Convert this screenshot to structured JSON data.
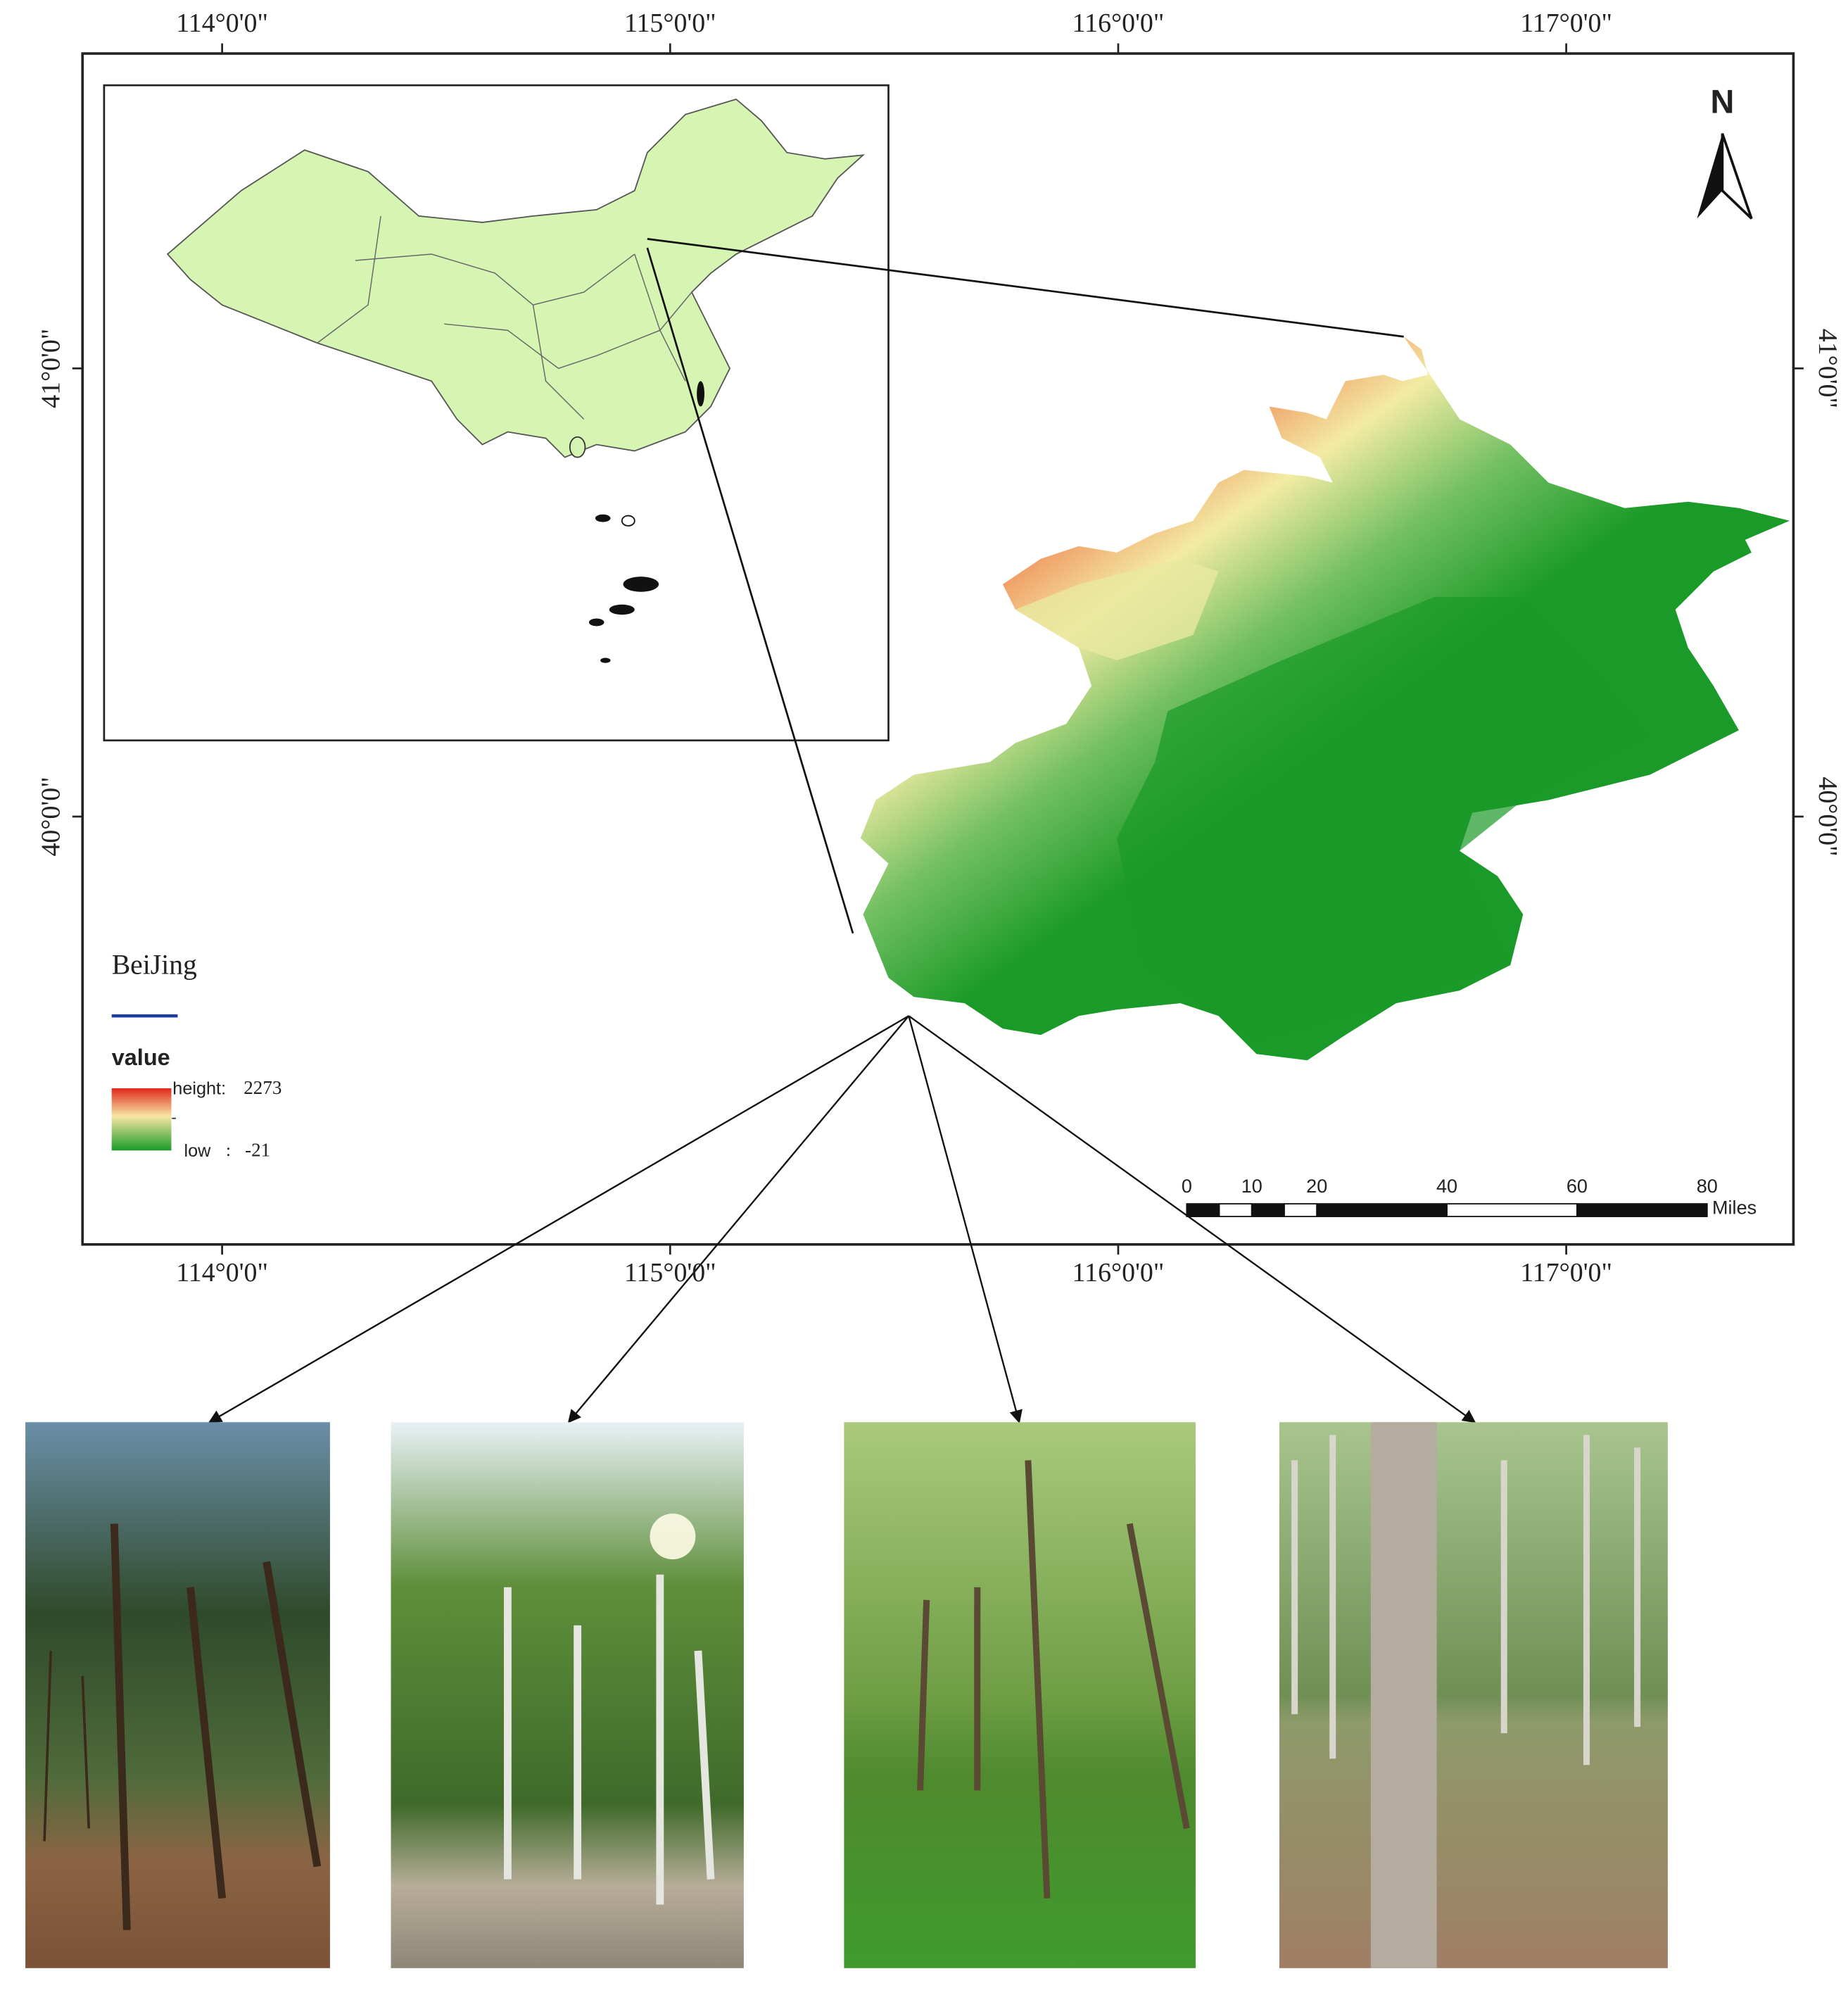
{
  "map": {
    "longitude_ticks": [
      {
        "value": 114,
        "label": "114°0'0\""
      },
      {
        "value": 115,
        "label": "115°0'0\""
      },
      {
        "value": 116,
        "label": "116°0'0\""
      },
      {
        "value": 117,
        "label": "117°0'0\""
      }
    ],
    "latitude_ticks": [
      {
        "value": 41,
        "label": "41°0'0\""
      },
      {
        "value": 40,
        "label": "40°0'0\""
      }
    ],
    "north": "N",
    "legend": {
      "title": "BeiJing",
      "value_label": "value",
      "high_label": "height:",
      "high_value": 2273,
      "separator": "-",
      "low_label": "low",
      "colon": ":",
      "low_value": -21
    },
    "scale_bar": {
      "ticks": [
        0,
        10,
        20,
        40,
        60,
        80
      ],
      "unit": "Miles"
    }
  }
}
